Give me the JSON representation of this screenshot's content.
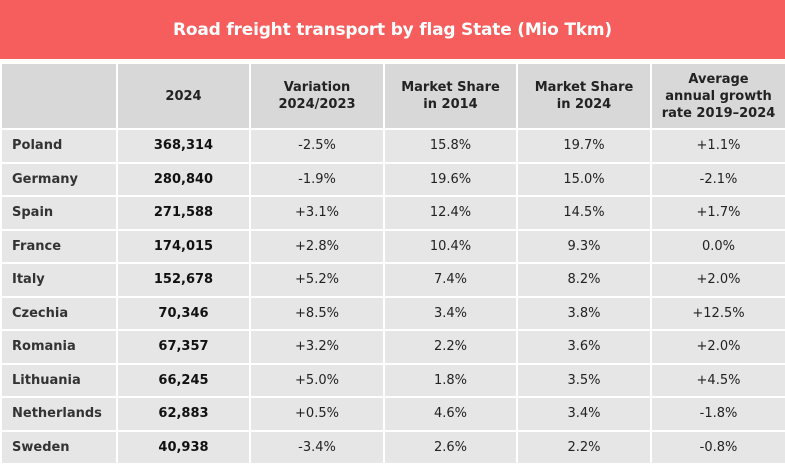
{
  "chart_data": {
    "type": "table",
    "title": "Road freight transport by flag State (Mio Tkm)",
    "columns": [
      "",
      "2024",
      "Variation\n2024/2023",
      "Market Share\nin 2014",
      "Market Share\nin 2024",
      "Average\nannual growth\nrate 2019–2024"
    ],
    "rows": [
      [
        "Poland",
        "368,314",
        "-2.5%",
        "15.8%",
        "19.7%",
        "+1.1%"
      ],
      [
        "Germany",
        "280,840",
        "-1.9%",
        "19.6%",
        "15.0%",
        "-2.1%"
      ],
      [
        "Spain",
        "271,588",
        "+3.1%",
        "12.4%",
        "14.5%",
        "+1.7%"
      ],
      [
        "France",
        "174,015",
        "+2.8%",
        "10.4%",
        "9.3%",
        "0.0%"
      ],
      [
        "Italy",
        "152,678",
        "+5.2%",
        "7.4%",
        "8.2%",
        "+2.0%"
      ],
      [
        "Czechia",
        "70,346",
        "+8.5%",
        "3.4%",
        "3.8%",
        "+12.5%"
      ],
      [
        "Romania",
        "67,357",
        "+3.2%",
        "2.2%",
        "3.6%",
        "+2.0%"
      ],
      [
        "Lithuania",
        "66,245",
        "+5.0%",
        "1.8%",
        "3.5%",
        "+4.5%"
      ],
      [
        "Netherlands",
        "62,883",
        "+0.5%",
        "4.6%",
        "3.4%",
        "-1.8%"
      ],
      [
        "Sweden",
        "40,938",
        "-3.4%",
        "2.6%",
        "2.2%",
        "-0.8%"
      ]
    ]
  },
  "colors": {
    "title_bg": "#f65d5d",
    "header_bg": "#d8d8d8",
    "cell_bg": "#e6e6e6"
  }
}
